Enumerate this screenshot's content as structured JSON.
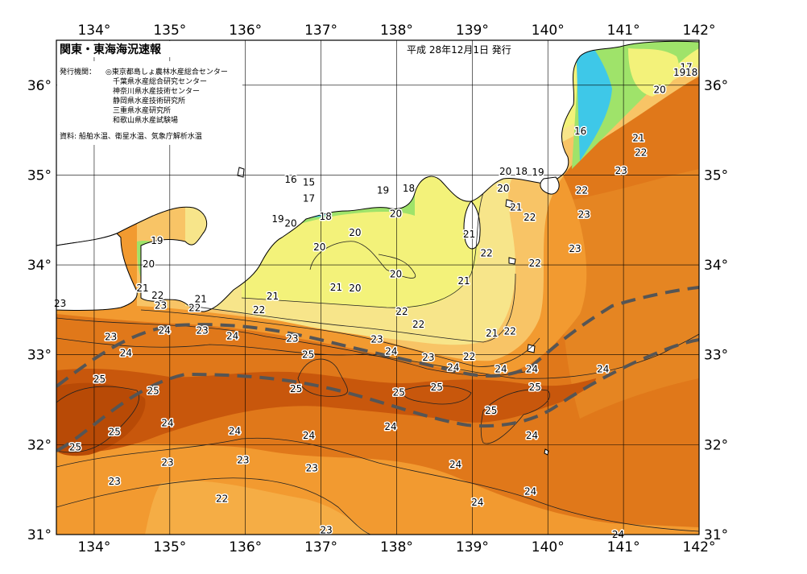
{
  "header": {
    "title": "関東・東海海況速報",
    "date": "平成 28年12月1日 発行",
    "issuers_label": "発行機関：",
    "issuers": [
      "◎東京都島しょ農林水産総合センター",
      "千葉県水産総合研究センター",
      "神奈川県水産技術センター",
      "静岡県水産技術研究所",
      "三重県水産研究所",
      "和歌山県水産試験場"
    ],
    "source": "資料: 船舶水温、衛星水温、気象庁解析水温"
  },
  "axes": {
    "lon_labels": [
      "134°",
      "135°",
      "136°",
      "137°",
      "138°",
      "139°",
      "140°",
      "141°",
      "142°"
    ],
    "lat_labels": [
      "36°",
      "35°",
      "34°",
      "33°",
      "32°",
      "31°"
    ],
    "lon_range": [
      133.5,
      142
    ],
    "lat_range": [
      31,
      36.5
    ]
  },
  "colors": {
    "sea_warmest": "#c8570c",
    "sea_warm": "#e0781a",
    "sea_mid": "#f29a30",
    "sea_cool": "#f8c466",
    "sea_cooler": "#f7e58a",
    "sea_cold_yellow": "#f3f27a",
    "sea_cold_green": "#9fe36a",
    "sea_cold_cyan": "#3ec8e8",
    "kuroshio_axis": "#555555",
    "land": "#ffffff"
  },
  "isotherm_labels": [
    {
      "t": "17",
      "lon": 141.83,
      "lat": 36.2
    },
    {
      "t": "18",
      "lon": 141.9,
      "lat": 36.14
    },
    {
      "t": "19",
      "lon": 141.74,
      "lat": 36.14
    },
    {
      "t": "20",
      "lon": 141.48,
      "lat": 35.95
    },
    {
      "t": "16",
      "lon": 140.43,
      "lat": 35.49
    },
    {
      "t": "21",
      "lon": 141.2,
      "lat": 35.41
    },
    {
      "t": "22",
      "lon": 141.23,
      "lat": 35.25
    },
    {
      "t": "23",
      "lon": 140.97,
      "lat": 35.05
    },
    {
      "t": "20",
      "lon": 139.44,
      "lat": 35.04
    },
    {
      "t": "18",
      "lon": 139.65,
      "lat": 35.04
    },
    {
      "t": "19",
      "lon": 139.87,
      "lat": 35.03
    },
    {
      "t": "22",
      "lon": 140.45,
      "lat": 34.83
    },
    {
      "t": "20",
      "lon": 139.41,
      "lat": 34.85
    },
    {
      "t": "21",
      "lon": 139.58,
      "lat": 34.64
    },
    {
      "t": "22",
      "lon": 139.76,
      "lat": 34.53
    },
    {
      "t": "23",
      "lon": 140.48,
      "lat": 34.56
    },
    {
      "t": "21",
      "lon": 138.96,
      "lat": 34.34
    },
    {
      "t": "22",
      "lon": 139.19,
      "lat": 34.13
    },
    {
      "t": "22",
      "lon": 139.83,
      "lat": 34.02
    },
    {
      "t": "23",
      "lon": 140.36,
      "lat": 34.18
    },
    {
      "t": "21",
      "lon": 138.89,
      "lat": 33.82
    },
    {
      "t": "16",
      "lon": 136.6,
      "lat": 34.95
    },
    {
      "t": "15",
      "lon": 136.84,
      "lat": 34.92
    },
    {
      "t": "17",
      "lon": 136.84,
      "lat": 34.74
    },
    {
      "t": "18",
      "lon": 137.06,
      "lat": 34.54
    },
    {
      "t": "19",
      "lon": 137.82,
      "lat": 34.83
    },
    {
      "t": "18",
      "lon": 138.16,
      "lat": 34.85
    },
    {
      "t": "19",
      "lon": 136.43,
      "lat": 34.51
    },
    {
      "t": "20",
      "lon": 136.6,
      "lat": 34.46
    },
    {
      "t": "20",
      "lon": 137.99,
      "lat": 34.57
    },
    {
      "t": "20",
      "lon": 137.45,
      "lat": 34.36
    },
    {
      "t": "20",
      "lon": 136.98,
      "lat": 34.2
    },
    {
      "t": "20",
      "lon": 137.99,
      "lat": 33.9
    },
    {
      "t": "21",
      "lon": 137.2,
      "lat": 33.75
    },
    {
      "t": "20",
      "lon": 137.45,
      "lat": 33.74
    },
    {
      "t": "21",
      "lon": 136.36,
      "lat": 33.65
    },
    {
      "t": "22",
      "lon": 136.18,
      "lat": 33.5
    },
    {
      "t": "22",
      "lon": 138.07,
      "lat": 33.48
    },
    {
      "t": "22",
      "lon": 138.29,
      "lat": 33.34
    },
    {
      "t": "21",
      "lon": 139.26,
      "lat": 33.24
    },
    {
      "t": "22",
      "lon": 139.5,
      "lat": 33.26
    },
    {
      "t": "23",
      "lon": 137.74,
      "lat": 33.17
    },
    {
      "t": "24",
      "lon": 137.93,
      "lat": 33.04
    },
    {
      "t": "23",
      "lon": 138.42,
      "lat": 32.97
    },
    {
      "t": "22",
      "lon": 138.96,
      "lat": 32.98
    },
    {
      "t": "24",
      "lon": 138.75,
      "lat": 32.86
    },
    {
      "t": "24",
      "lon": 139.38,
      "lat": 32.84
    },
    {
      "t": "24",
      "lon": 139.79,
      "lat": 32.84
    },
    {
      "t": "24",
      "lon": 140.73,
      "lat": 32.84
    },
    {
      "t": "25",
      "lon": 139.83,
      "lat": 32.64
    },
    {
      "t": "25",
      "lon": 138.53,
      "lat": 32.64
    },
    {
      "t": "25",
      "lon": 138.03,
      "lat": 32.58
    },
    {
      "t": "25",
      "lon": 139.25,
      "lat": 32.38
    },
    {
      "t": "24",
      "lon": 137.92,
      "lat": 32.2
    },
    {
      "t": "24",
      "lon": 139.79,
      "lat": 32.1
    },
    {
      "t": "24",
      "lon": 138.78,
      "lat": 31.78
    },
    {
      "t": "24",
      "lon": 139.77,
      "lat": 31.48
    },
    {
      "t": "24",
      "lon": 139.07,
      "lat": 31.36
    },
    {
      "t": "24",
      "lon": 140.93,
      "lat": 31.0
    },
    {
      "t": "23",
      "lon": 137.07,
      "lat": 31.05
    },
    {
      "t": "23",
      "lon": 134.97,
      "lat": 31.8
    },
    {
      "t": "23",
      "lon": 135.97,
      "lat": 31.83
    },
    {
      "t": "23",
      "lon": 136.88,
      "lat": 31.74
    },
    {
      "t": "22",
      "lon": 135.69,
      "lat": 31.4
    },
    {
      "t": "23",
      "lon": 134.27,
      "lat": 31.59
    },
    {
      "t": "24",
      "lon": 134.42,
      "lat": 33.02
    },
    {
      "t": "23",
      "lon": 134.22,
      "lat": 33.2
    },
    {
      "t": "24",
      "lon": 134.93,
      "lat": 33.27
    },
    {
      "t": "23",
      "lon": 135.43,
      "lat": 33.27
    },
    {
      "t": "24",
      "lon": 135.83,
      "lat": 33.21
    },
    {
      "t": "23",
      "lon": 136.62,
      "lat": 33.18
    },
    {
      "t": "25",
      "lon": 136.83,
      "lat": 33.0
    },
    {
      "t": "25",
      "lon": 136.67,
      "lat": 32.62
    },
    {
      "t": "25",
      "lon": 134.07,
      "lat": 32.73
    },
    {
      "t": "25",
      "lon": 134.78,
      "lat": 32.6
    },
    {
      "t": "25",
      "lon": 134.27,
      "lat": 32.14
    },
    {
      "t": "25",
      "lon": 133.75,
      "lat": 31.97
    },
    {
      "t": "24",
      "lon": 134.97,
      "lat": 32.24
    },
    {
      "t": "24",
      "lon": 135.86,
      "lat": 32.15
    },
    {
      "t": "24",
      "lon": 136.84,
      "lat": 32.1
    },
    {
      "t": "23",
      "lon": 133.55,
      "lat": 33.57
    },
    {
      "t": "19",
      "lon": 134.83,
      "lat": 34.27
    },
    {
      "t": "20",
      "lon": 134.72,
      "lat": 34.01
    },
    {
      "t": "21",
      "lon": 134.64,
      "lat": 33.74
    },
    {
      "t": "22",
      "lon": 134.84,
      "lat": 33.66
    },
    {
      "t": "23",
      "lon": 134.88,
      "lat": 33.55
    },
    {
      "t": "21",
      "lon": 135.41,
      "lat": 33.62
    },
    {
      "t": "22",
      "lon": 135.33,
      "lat": 33.52
    }
  ]
}
